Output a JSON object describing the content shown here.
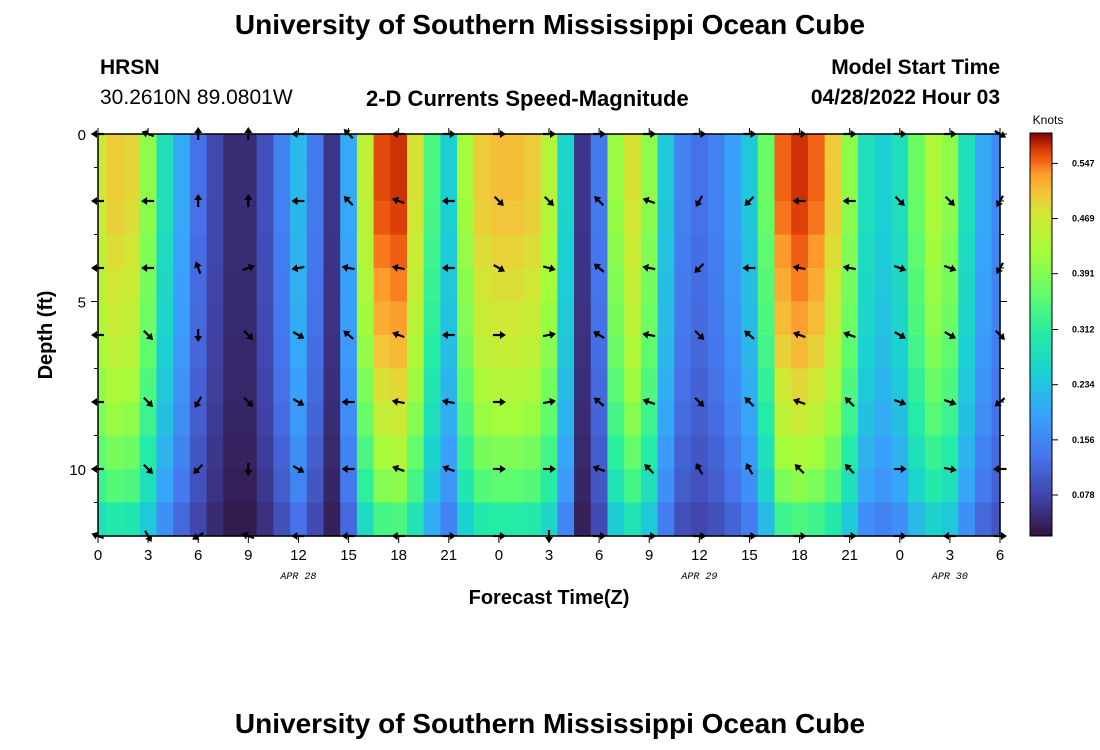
{
  "header": {
    "title": "University of Southern Mississippi Ocean Cube",
    "station": "HRSN",
    "location": "30.2610N  89.0801W",
    "chart_title": "2-D Currents Speed-Magnitude",
    "model_label": "Model Start Time",
    "model_time": "04/28/2022 Hour 03"
  },
  "footer": {
    "title": "University of Southern Mississippi Ocean Cube"
  },
  "chart_data": {
    "type": "heatmap",
    "title": "2-D Currents Speed-Magnitude",
    "xlabel": "Forecast Time(Z)",
    "ylabel": "Depth (ft)",
    "x_hours_from_start": [
      0,
      54
    ],
    "x_tick_labels": [
      "0",
      "3",
      "6",
      "9",
      "12",
      "15",
      "18",
      "21",
      "0",
      "3",
      "6",
      "9",
      "12",
      "15",
      "18",
      "21",
      "0",
      "3",
      "6"
    ],
    "date_labels": [
      {
        "label": "APR 28",
        "hour": 12
      },
      {
        "label": "APR 29",
        "hour": 36
      },
      {
        "label": "APR 30",
        "hour": 51
      }
    ],
    "y_range": [
      0,
      12
    ],
    "y_tick_labels": [
      "0",
      "5",
      "10"
    ],
    "colorbar": {
      "label": "Knots",
      "range": [
        0.02,
        0.59
      ],
      "ticks": [
        "0.547",
        "0.469",
        "0.391",
        "0.312",
        "0.234",
        "0.156",
        "0.078"
      ],
      "tick_values": [
        0.547,
        0.469,
        0.391,
        0.312,
        0.234,
        0.156,
        0.078
      ]
    },
    "column_hours": [
      0,
      1,
      2,
      3,
      4,
      5,
      6,
      7,
      8,
      9,
      10,
      11,
      12,
      13,
      14,
      15,
      16,
      17,
      18,
      19,
      20,
      21,
      22,
      23,
      24,
      25,
      26,
      27,
      28,
      29,
      30,
      31,
      32,
      33,
      34,
      35,
      36,
      37,
      38,
      39,
      40,
      41,
      42,
      43,
      44,
      45,
      46,
      47,
      48,
      49,
      50,
      51,
      52,
      53,
      54
    ],
    "surface_speed": [
      0.47,
      0.5,
      0.49,
      0.4,
      0.28,
      0.2,
      0.13,
      0.08,
      0.05,
      0.05,
      0.09,
      0.15,
      0.22,
      0.14,
      0.06,
      0.2,
      0.45,
      0.56,
      0.57,
      0.48,
      0.34,
      0.25,
      0.42,
      0.5,
      0.51,
      0.51,
      0.5,
      0.44,
      0.26,
      0.06,
      0.14,
      0.41,
      0.48,
      0.4,
      0.24,
      0.15,
      0.13,
      0.15,
      0.19,
      0.24,
      0.37,
      0.55,
      0.57,
      0.55,
      0.5,
      0.4,
      0.28,
      0.25,
      0.28,
      0.37,
      0.43,
      0.4,
      0.28,
      0.2,
      0.16
    ],
    "depth_factor": [
      1.0,
      1.0,
      0.99,
      0.97,
      0.95,
      0.93,
      0.9,
      0.86,
      0.82,
      0.76,
      0.7,
      0.6
    ],
    "vectors_depths_ft": [
      0,
      2,
      4,
      6,
      8,
      10,
      12
    ],
    "vector_hours": [
      0,
      3,
      6,
      9,
      12,
      15,
      18,
      21,
      24,
      27,
      30,
      33,
      36,
      39,
      42,
      45,
      48,
      51,
      54
    ],
    "vector_directions_deg": [
      [
        180,
        200,
        270,
        270,
        180,
        225,
        180,
        0,
        0,
        0,
        0,
        0,
        0,
        0,
        0,
        0,
        0,
        0,
        30
      ],
      [
        180,
        180,
        270,
        270,
        180,
        225,
        200,
        180,
        45,
        45,
        225,
        200,
        120,
        135,
        180,
        180,
        45,
        45,
        120
      ],
      [
        180,
        180,
        250,
        340,
        170,
        190,
        190,
        180,
        30,
        15,
        220,
        190,
        135,
        180,
        190,
        190,
        20,
        20,
        120
      ],
      [
        180,
        45,
        90,
        45,
        30,
        220,
        200,
        180,
        0,
        350,
        210,
        190,
        45,
        220,
        200,
        200,
        30,
        30,
        45
      ],
      [
        180,
        45,
        120,
        45,
        30,
        180,
        190,
        190,
        0,
        350,
        220,
        200,
        45,
        225,
        200,
        225,
        20,
        20,
        140
      ],
      [
        180,
        45,
        135,
        90,
        30,
        180,
        200,
        200,
        0,
        0,
        200,
        225,
        240,
        240,
        225,
        225,
        0,
        10,
        180
      ],
      [
        200,
        60,
        150,
        200,
        180,
        180,
        180,
        0,
        0,
        90,
        0,
        0,
        0,
        0,
        0,
        0,
        0,
        180,
        0
      ]
    ]
  }
}
